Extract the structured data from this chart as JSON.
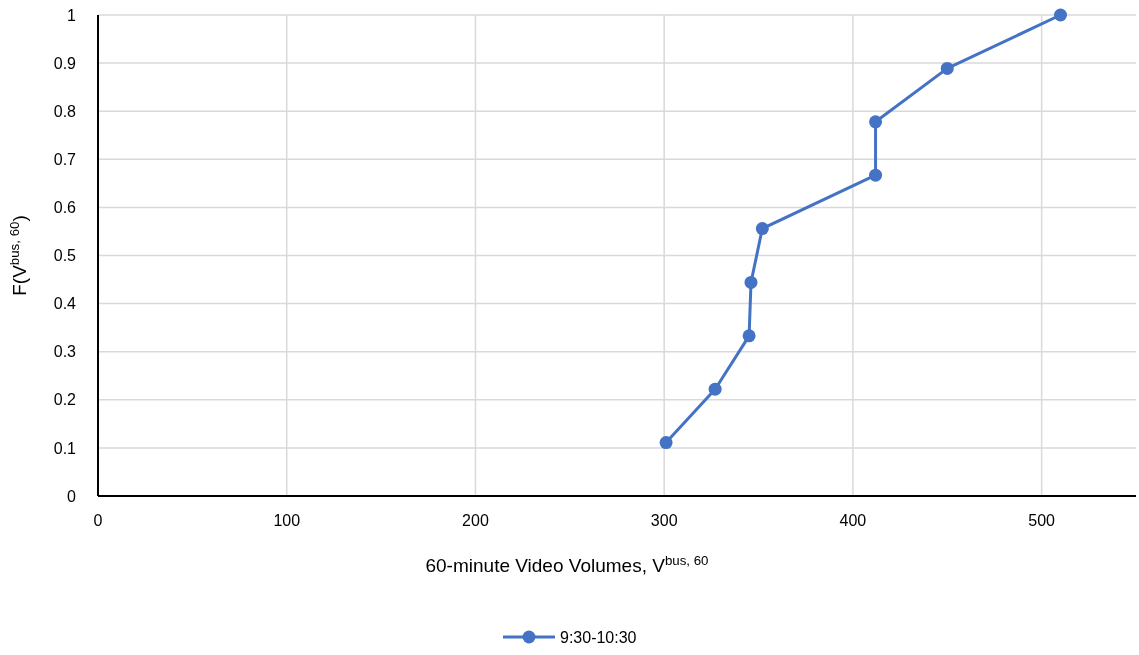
{
  "chart_data": {
    "type": "line",
    "xlabel": "60-minute Video Volumes, V$^{bus, 60}$",
    "ylabel": "F(V$^{bus, 60}$)",
    "xlim": [
      0,
      550
    ],
    "xticks": [
      0,
      100,
      200,
      300,
      400,
      500
    ],
    "ylim": [
      0,
      1
    ],
    "yticks": [
      0,
      0.1,
      0.2,
      0.3,
      0.4,
      0.5,
      0.6,
      0.7,
      0.8,
      0.9,
      1
    ],
    "grid": true,
    "legend": "bottom",
    "marker": "circle",
    "line_style": "solid",
    "series": [
      {
        "name": "9:30-10:30",
        "color": "#4472c4",
        "x": [
          301,
          327,
          345,
          346,
          352,
          412,
          412,
          450,
          510
        ],
        "values": [
          0.111,
          0.222,
          0.333,
          0.444,
          0.556,
          0.667,
          0.778,
          0.889,
          1
        ]
      }
    ]
  }
}
